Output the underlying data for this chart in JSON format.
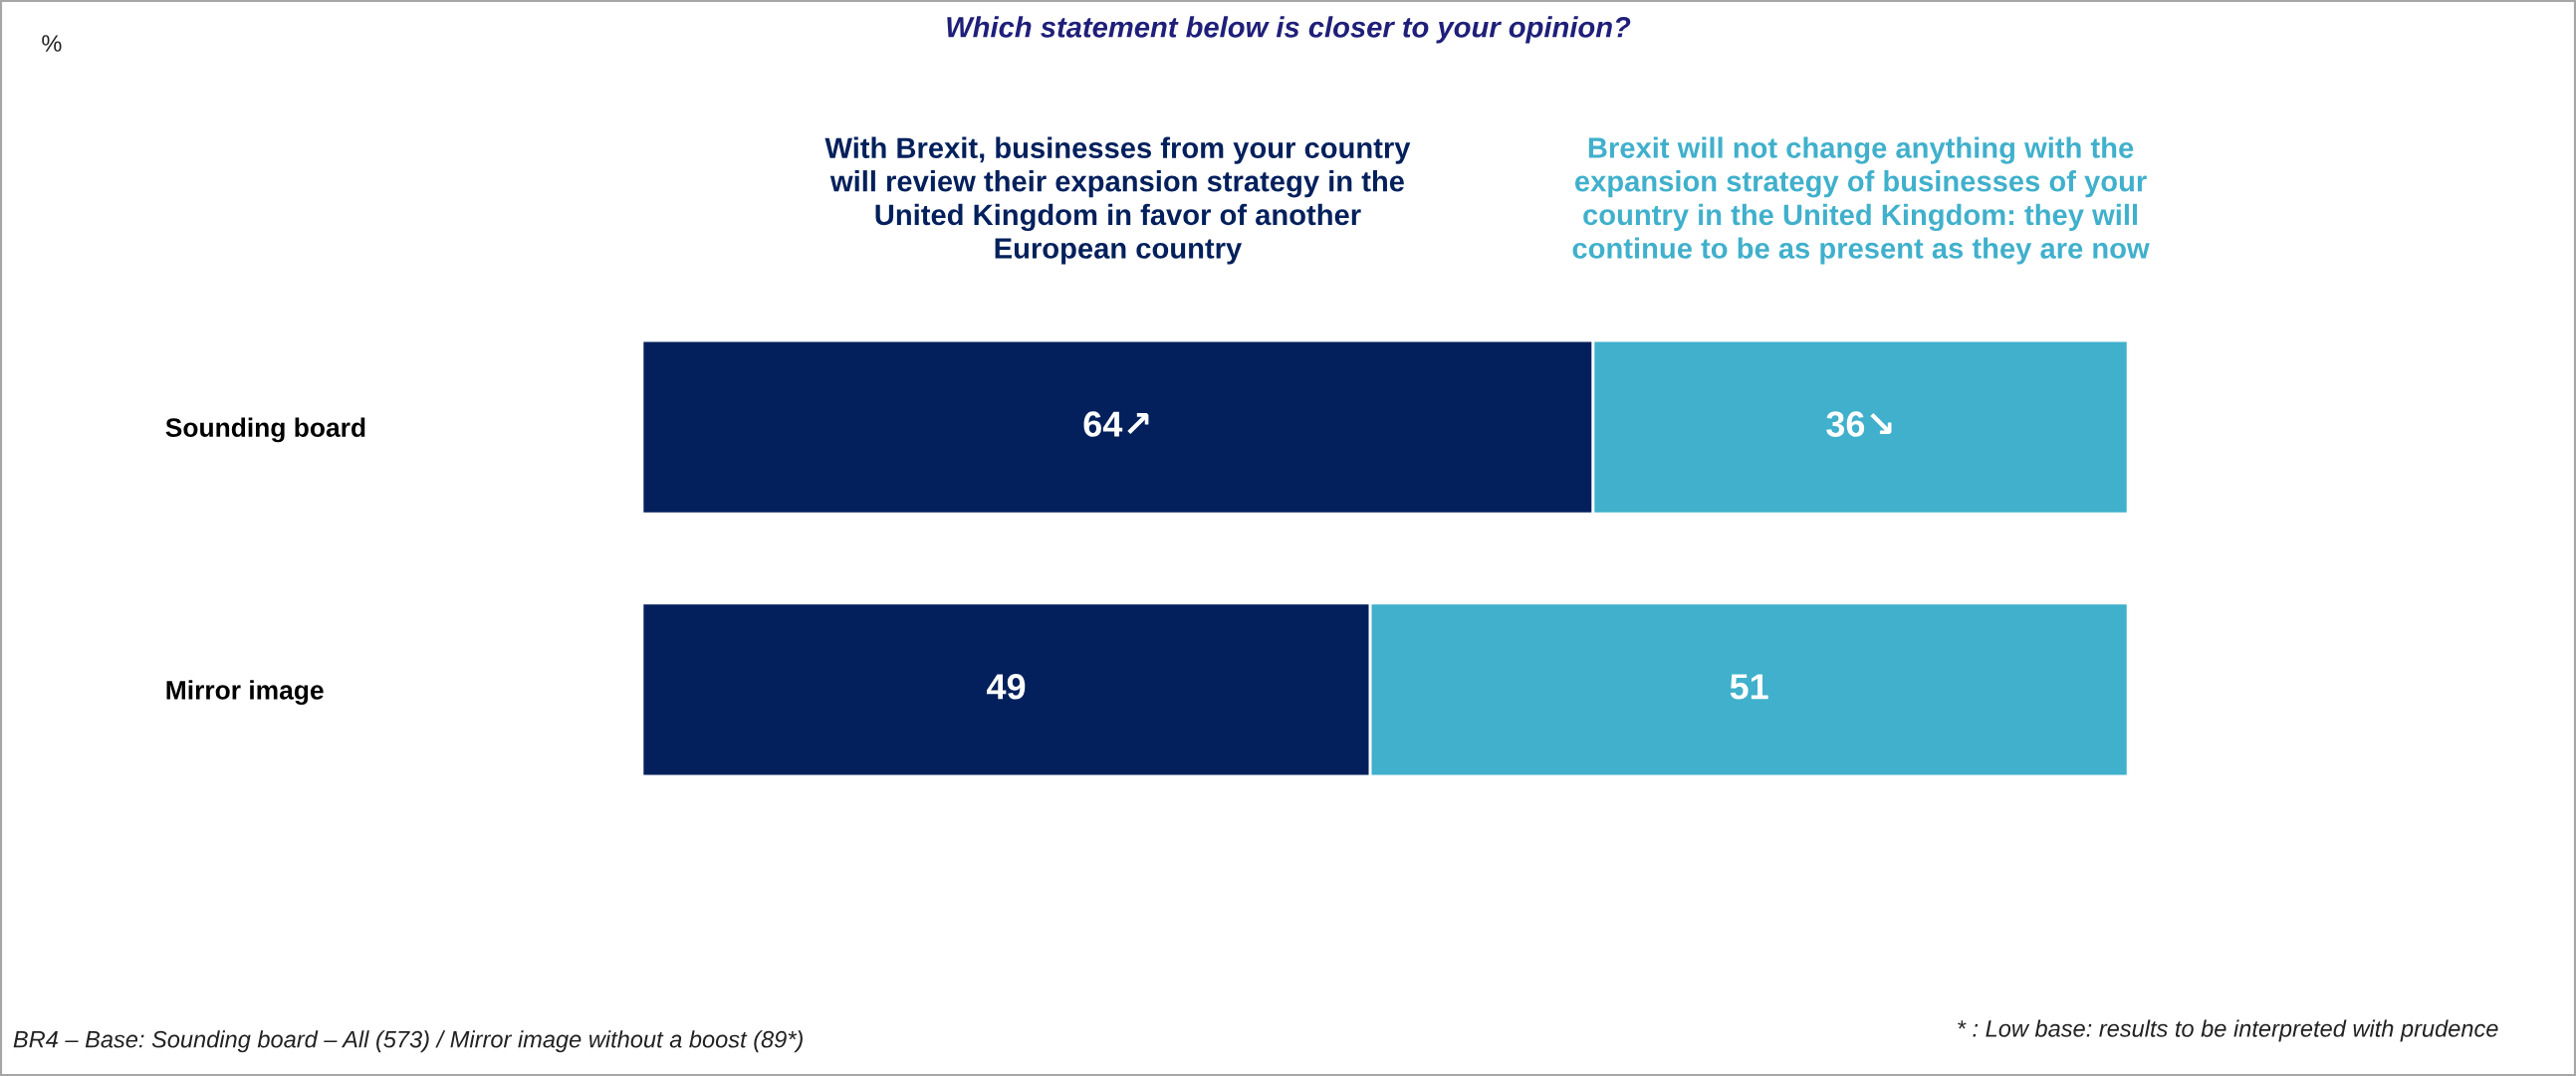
{
  "chart_data": {
    "type": "bar",
    "orientation": "horizontal",
    "stacked": true,
    "title": "Which statement below is closer to your opinion?",
    "categories": [
      "Sounding board",
      "Mirror image"
    ],
    "series": [
      {
        "name": "With Brexit, businesses from your country\nwill review their expansion strategy in the\nUnited Kingdom in favor of another\nEuropean country",
        "color": "#03205c",
        "values": [
          64,
          49
        ],
        "value_labels": [
          "64↗",
          "49"
        ]
      },
      {
        "name": "Brexit will not change anything with the\nexpansion strategy of businesses of your\ncountry in the United Kingdom: they will\ncontinue to be as present as they are now",
        "color": "#40b0cc",
        "values": [
          36,
          51
        ],
        "value_labels": [
          "36↘",
          "51"
        ]
      }
    ],
    "xlim": [
      0,
      100
    ],
    "tick_labels": "y",
    "grid": false,
    "legend": false,
    "annotations": [
      "%",
      "BR4 – Base: Sounding board – All (573) / Mirror image without a boost (89*)",
      "* : Low base: results to be interpreted with prudence"
    ]
  }
}
